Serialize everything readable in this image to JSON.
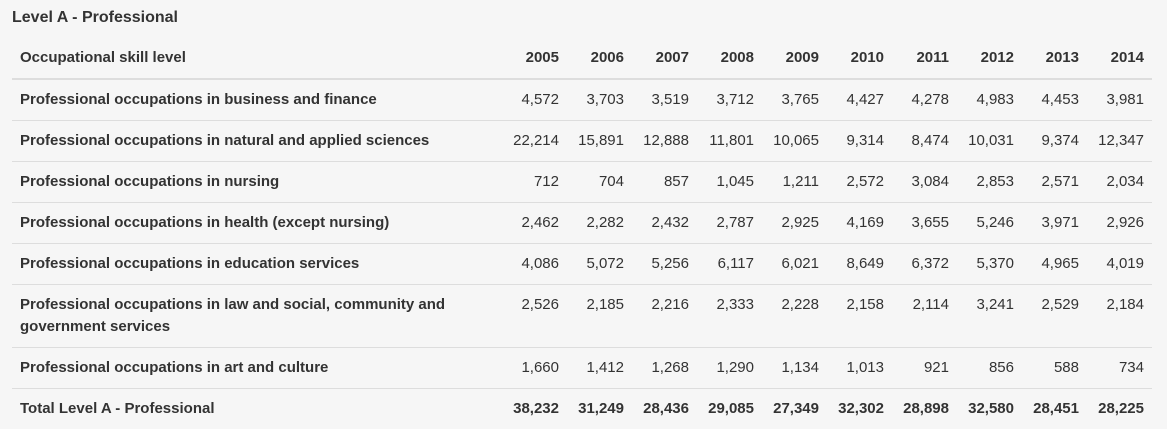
{
  "caption": "Level A - Professional",
  "table": {
    "headers": [
      "Occupational skill level",
      "2005",
      "2006",
      "2007",
      "2008",
      "2009",
      "2010",
      "2011",
      "2012",
      "2013",
      "2014"
    ],
    "rows": [
      {
        "label": "Professional occupations in business and finance",
        "values": [
          "4,572",
          "3,703",
          "3,519",
          "3,712",
          "3,765",
          "4,427",
          "4,278",
          "4,983",
          "4,453",
          "3,981"
        ]
      },
      {
        "label": "Professional occupations in natural and applied sciences",
        "values": [
          "22,214",
          "15,891",
          "12,888",
          "11,801",
          "10,065",
          "9,314",
          "8,474",
          "10,031",
          "9,374",
          "12,347"
        ]
      },
      {
        "label": "Professional occupations in nursing",
        "values": [
          "712",
          "704",
          "857",
          "1,045",
          "1,211",
          "2,572",
          "3,084",
          "2,853",
          "2,571",
          "2,034"
        ]
      },
      {
        "label": "Professional occupations in health (except nursing)",
        "values": [
          "2,462",
          "2,282",
          "2,432",
          "2,787",
          "2,925",
          "4,169",
          "3,655",
          "5,246",
          "3,971",
          "2,926"
        ]
      },
      {
        "label": "Professional occupations in education services",
        "values": [
          "4,086",
          "5,072",
          "5,256",
          "6,117",
          "6,021",
          "8,649",
          "6,372",
          "5,370",
          "4,965",
          "4,019"
        ]
      },
      {
        "label": "Professional occupations in law and social, community and government services",
        "values": [
          "2,526",
          "2,185",
          "2,216",
          "2,333",
          "2,228",
          "2,158",
          "2,114",
          "3,241",
          "2,529",
          "2,184"
        ]
      },
      {
        "label": "Professional occupations in art and culture",
        "values": [
          "1,660",
          "1,412",
          "1,268",
          "1,290",
          "1,134",
          "1,013",
          "921",
          "856",
          "588",
          "734"
        ]
      },
      {
        "label": "Total Level A - Professional",
        "values": [
          "38,232",
          "31,249",
          "28,436",
          "29,085",
          "27,349",
          "32,302",
          "28,898",
          "32,580",
          "28,451",
          "28,225"
        ],
        "total": true
      }
    ]
  }
}
